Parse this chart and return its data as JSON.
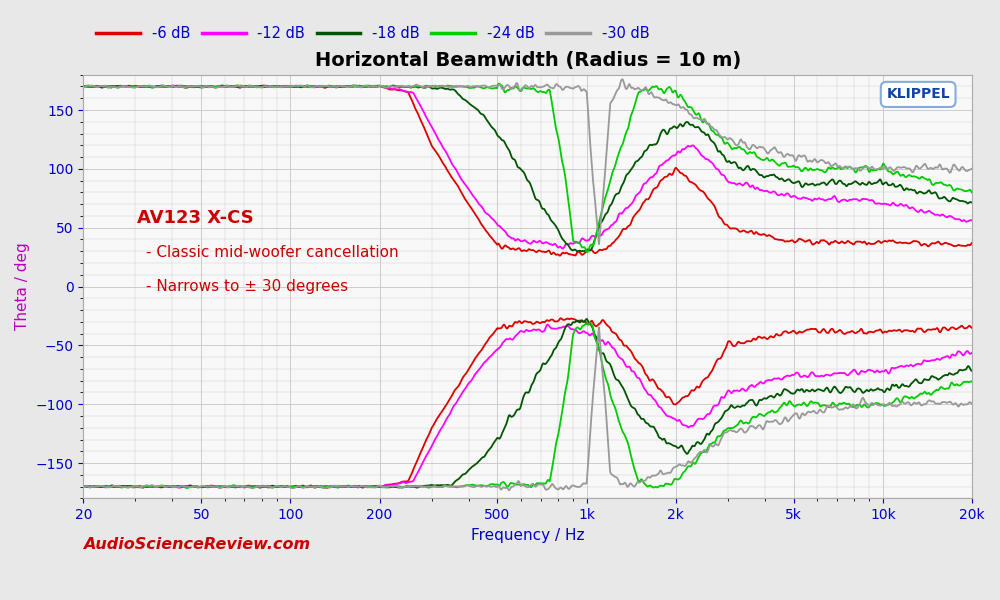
{
  "title": "Horizontal Beamwidth (Radius = 10 m)",
  "xlabel": "Frequency / Hz",
  "ylabel": "Theta / deg",
  "ylabel_color": "#bb00bb",
  "xlabel_color": "#0000cc",
  "xtick_color": "#0000cc",
  "ytick_color": "#0000cc",
  "watermark": "AudioScienceReview.com",
  "watermark_color": "#cc0000",
  "klippel_text": "KLIPPEL",
  "annotation_title": "AV123 X-CS",
  "annotation_lines": [
    "- Classic mid-woofer cancellation",
    "- Narrows to ± 30 degrees"
  ],
  "annotation_color": "#cc0000",
  "background_color": "#e8e8e8",
  "plot_background": "#f8f8f8",
  "grid_color": "#cccccc",
  "legend_entries": [
    "-6 dB",
    "-12 dB",
    "-18 dB",
    "-24 dB",
    "-30 dB"
  ],
  "line_colors": [
    "#dd0000",
    "#ff00ff",
    "#005500",
    "#00cc00",
    "#999999"
  ],
  "line_widths": [
    1.3,
    1.3,
    1.3,
    1.3,
    1.3
  ]
}
